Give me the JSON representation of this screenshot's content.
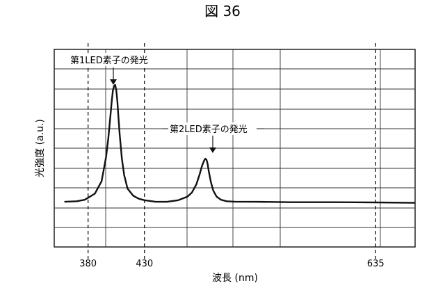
{
  "figure_title": "図 36",
  "chart_data": {
    "type": "line",
    "xlabel": "波長 (nm)",
    "ylabel": "光強度 (a.u.)",
    "xlim": [
      350,
      670
    ],
    "x_ticks": [
      380,
      430,
      635
    ],
    "x_tick_labels": [
      "380",
      "430",
      "635"
    ],
    "reference_lines_x": [
      380,
      430,
      635
    ],
    "grid": true,
    "legend": "none",
    "color": "#111111",
    "series": [
      {
        "x": [
          359,
          370,
          377,
          380,
          386,
          392,
          396,
          398,
          400,
          401,
          402,
          403,
          404,
          405,
          406,
          407,
          408,
          410,
          412,
          415,
          420,
          425,
          430,
          440,
          450,
          460,
          468,
          472,
          476,
          479,
          481,
          483,
          484,
          485,
          486,
          487,
          489,
          491,
          494,
          498,
          503,
          510,
          530,
          560,
          600,
          635,
          670
        ],
        "y": [
          0.3,
          0.33,
          0.4,
          0.5,
          0.7,
          1.3,
          2.5,
          3.4,
          4.6,
          5.2,
          5.7,
          5.95,
          6.0,
          5.75,
          5.2,
          4.4,
          3.6,
          2.4,
          1.6,
          0.95,
          0.6,
          0.45,
          0.38,
          0.3,
          0.3,
          0.38,
          0.55,
          0.75,
          1.15,
          1.65,
          2.05,
          2.32,
          2.4,
          2.35,
          2.15,
          1.8,
          1.25,
          0.85,
          0.55,
          0.4,
          0.33,
          0.31,
          0.3,
          0.28,
          0.28,
          0.27,
          0.25
        ]
      }
    ],
    "annotations": [
      {
        "text": "第1LED素子の発光",
        "x": 404,
        "y": 6.0
      },
      {
        "text": "第2LED素子の発光",
        "x": 484,
        "y": 2.4
      }
    ]
  }
}
